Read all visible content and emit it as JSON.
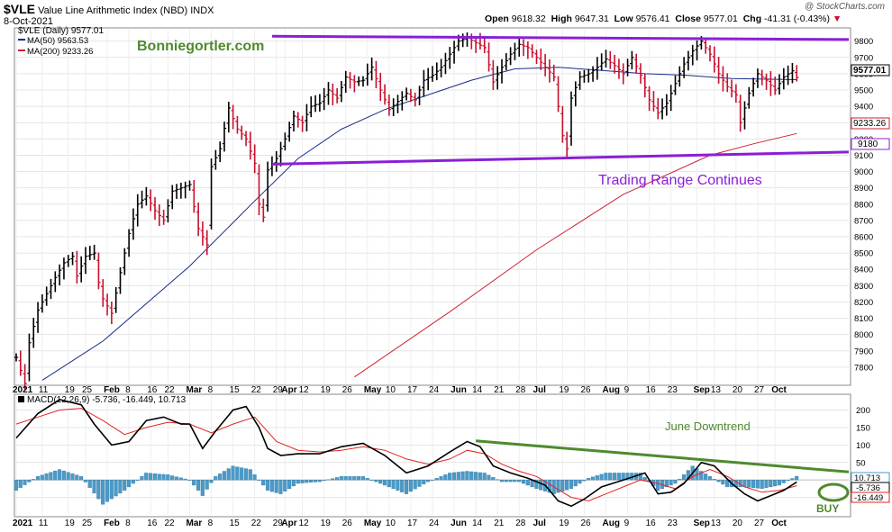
{
  "header": {
    "symbol": "$VLE",
    "name": "Value Line Arithmetic Index (NBD)",
    "exchange": "INDX",
    "date": "8-Oct-2021",
    "credit": "@ StockCharts.com"
  },
  "ohlc": {
    "open_label": "Open",
    "open": "9618.32",
    "high_label": "High",
    "high": "9647.31",
    "low_label": "Low",
    "low": "9576.41",
    "close_label": "Close",
    "close": "9577.01",
    "chg_label": "Chg",
    "chg": "-41.31 (-0.43%)"
  },
  "legend": {
    "price": "$VLE (Daily) 9577.01",
    "ma50": "MA(50) 9563.53",
    "ma200": "MA(200) 9233.26",
    "macd": "MACD(12,26,9) -5.736, -16.449, 10.713"
  },
  "annotations": {
    "watermark": "Bonniegortler.com",
    "range": "Trading Range Continues",
    "downtrend": "June Downtrend",
    "buy": "BUY"
  },
  "price_labels": {
    "last": "9577.01",
    "ma200": "9233.26",
    "support": "9180"
  },
  "macd_labels": {
    "hist": "10.713",
    "macd": "-5.736",
    "signal": "-16.449"
  },
  "colors": {
    "up": "#000000",
    "down": "#c8102e",
    "ma50": "#1a2d8c",
    "ma200": "#cc2233",
    "trend": "#8a1fd6",
    "macd": "#000000",
    "signal": "#e32424",
    "hist": "#4a9ac9",
    "green": "#4e8a2e"
  },
  "x_axis_labels": [
    {
      "d": 0,
      "t": "2021"
    },
    {
      "d": 6,
      "t": "11"
    },
    {
      "d": 12,
      "t": "19"
    },
    {
      "d": 16,
      "t": "25"
    },
    {
      "d": 21,
      "t": "Feb"
    },
    {
      "d": 26,
      "t": "8"
    },
    {
      "d": 31,
      "t": "16"
    },
    {
      "d": 35,
      "t": "22"
    },
    {
      "d": 40,
      "t": "Mar"
    },
    {
      "d": 45,
      "t": "8"
    },
    {
      "d": 50,
      "t": "15"
    },
    {
      "d": 55,
      "t": "22"
    },
    {
      "d": 60,
      "t": "29"
    },
    {
      "d": 62,
      "t": "Apr"
    },
    {
      "d": 66,
      "t": "12"
    },
    {
      "d": 71,
      "t": "19"
    },
    {
      "d": 76,
      "t": "26"
    },
    {
      "d": 81,
      "t": "May"
    },
    {
      "d": 86,
      "t": "10"
    },
    {
      "d": 91,
      "t": "17"
    },
    {
      "d": 96,
      "t": "24"
    },
    {
      "d": 101,
      "t": "Jun"
    },
    {
      "d": 106,
      "t": "14"
    },
    {
      "d": 111,
      "t": "21"
    },
    {
      "d": 116,
      "t": "28"
    },
    {
      "d": 120,
      "t": "Jul"
    },
    {
      "d": 126,
      "t": "19"
    },
    {
      "d": 131,
      "t": "26"
    },
    {
      "d": 136,
      "t": "Aug"
    },
    {
      "d": 141,
      "t": "9"
    },
    {
      "d": 146,
      "t": "16"
    },
    {
      "d": 151,
      "t": "23"
    },
    {
      "d": 157,
      "t": "Sep"
    },
    {
      "d": 161,
      "t": "13"
    },
    {
      "d": 166,
      "t": "20"
    },
    {
      "d": 171,
      "t": "27"
    },
    {
      "d": 175,
      "t": "Oct"
    }
  ],
  "chart_data": [
    {
      "type": "line",
      "title": "$VLE Value Line Arithmetic Index (NBD) INDX — Daily",
      "x_range_days": [
        0,
        192
      ],
      "ylim": [
        7700,
        9870
      ],
      "yticks": [
        7800,
        7900,
        8000,
        8100,
        8200,
        8300,
        8400,
        8500,
        8600,
        8700,
        8800,
        8900,
        9000,
        9100,
        9200,
        9300,
        9400,
        9500,
        9600,
        9700,
        9800
      ],
      "price_path": [
        [
          0,
          7860
        ],
        [
          2,
          7700
        ],
        [
          3,
          7950
        ],
        [
          5,
          8150
        ],
        [
          7,
          8250
        ],
        [
          9,
          8350
        ],
        [
          11,
          8440
        ],
        [
          13,
          8480
        ],
        [
          14,
          8360
        ],
        [
          16,
          8480
        ],
        [
          18,
          8500
        ],
        [
          19,
          8320
        ],
        [
          20,
          8220
        ],
        [
          22,
          8130
        ],
        [
          24,
          8380
        ],
        [
          26,
          8620
        ],
        [
          28,
          8800
        ],
        [
          30,
          8850
        ],
        [
          32,
          8760
        ],
        [
          34,
          8700
        ],
        [
          36,
          8880
        ],
        [
          38,
          8900
        ],
        [
          40,
          8920
        ],
        [
          42,
          8650
        ],
        [
          44,
          8550
        ],
        [
          45,
          9030
        ],
        [
          47,
          9140
        ],
        [
          49,
          9390
        ],
        [
          51,
          9260
        ],
        [
          53,
          9200
        ],
        [
          55,
          9050
        ],
        [
          56,
          8800
        ],
        [
          57,
          8720
        ],
        [
          58,
          9010
        ],
        [
          60,
          9080
        ],
        [
          62,
          9200
        ],
        [
          64,
          9340
        ],
        [
          66,
          9300
        ],
        [
          68,
          9400
        ],
        [
          70,
          9420
        ],
        [
          72,
          9500
        ],
        [
          74,
          9450
        ],
        [
          76,
          9580
        ],
        [
          78,
          9550
        ],
        [
          80,
          9560
        ],
        [
          82,
          9640
        ],
        [
          84,
          9500
        ],
        [
          86,
          9380
        ],
        [
          88,
          9430
        ],
        [
          90,
          9480
        ],
        [
          92,
          9440
        ],
        [
          94,
          9560
        ],
        [
          96,
          9590
        ],
        [
          98,
          9640
        ],
        [
          100,
          9720
        ],
        [
          102,
          9800
        ],
        [
          104,
          9820
        ],
        [
          106,
          9790
        ],
        [
          108,
          9760
        ],
        [
          110,
          9550
        ],
        [
          112,
          9640
        ],
        [
          114,
          9720
        ],
        [
          116,
          9780
        ],
        [
          118,
          9760
        ],
        [
          120,
          9700
        ],
        [
          122,
          9640
        ],
        [
          124,
          9580
        ],
        [
          126,
          9220
        ],
        [
          127,
          9140
        ],
        [
          128,
          9450
        ],
        [
          130,
          9580
        ],
        [
          132,
          9600
        ],
        [
          134,
          9640
        ],
        [
          136,
          9690
        ],
        [
          138,
          9650
        ],
        [
          140,
          9600
        ],
        [
          142,
          9700
        ],
        [
          144,
          9590
        ],
        [
          146,
          9440
        ],
        [
          148,
          9360
        ],
        [
          150,
          9420
        ],
        [
          152,
          9540
        ],
        [
          154,
          9660
        ],
        [
          156,
          9740
        ],
        [
          158,
          9800
        ],
        [
          160,
          9720
        ],
        [
          162,
          9600
        ],
        [
          164,
          9520
        ],
        [
          166,
          9470
        ],
        [
          167,
          9300
        ],
        [
          169,
          9480
        ],
        [
          171,
          9600
        ],
        [
          173,
          9560
        ],
        [
          175,
          9500
        ],
        [
          177,
          9580
        ],
        [
          179,
          9618
        ],
        [
          180,
          9577
        ]
      ],
      "series": [
        {
          "name": "MA(50) 9563.53",
          "values": [
            [
              6,
              7720
            ],
            [
              20,
              7960
            ],
            [
              40,
              8420
            ],
            [
              55,
              8820
            ],
            [
              65,
              9080
            ],
            [
              75,
              9260
            ],
            [
              85,
              9380
            ],
            [
              95,
              9470
            ],
            [
              105,
              9560
            ],
            [
              115,
              9630
            ],
            [
              125,
              9640
            ],
            [
              135,
              9620
            ],
            [
              145,
              9600
            ],
            [
              155,
              9590
            ],
            [
              165,
              9570
            ],
            [
              180,
              9563.53
            ]
          ]
        },
        {
          "name": "MA(200) 9233.26",
          "values": [
            [
              78,
              7740
            ],
            [
              100,
              8140
            ],
            [
              120,
              8520
            ],
            [
              140,
              8860
            ],
            [
              160,
              9100
            ],
            [
              170,
              9170
            ],
            [
              180,
              9233.26
            ]
          ]
        }
      ],
      "trendlines": [
        {
          "name": "resistance",
          "points": [
            [
              59,
              9830
            ],
            [
              192,
              9810
            ]
          ]
        },
        {
          "name": "support",
          "points": [
            [
              59,
              9045
            ],
            [
              192,
              9120
            ]
          ]
        }
      ]
    },
    {
      "type": "line",
      "title": "MACD(12,26,9) -5.736, -16.449, 10.713",
      "ylim": [
        -100,
        240
      ],
      "yticks": [
        -50,
        0,
        50,
        100,
        150,
        200
      ],
      "series": [
        {
          "name": "MACD",
          "values": [
            [
              0,
              120
            ],
            [
              5,
              190
            ],
            [
              10,
              230
            ],
            [
              15,
              215
            ],
            [
              18,
              160
            ],
            [
              22,
              100
            ],
            [
              26,
              110
            ],
            [
              30,
              170
            ],
            [
              34,
              180
            ],
            [
              38,
              160
            ],
            [
              40,
              160
            ],
            [
              43,
              90
            ],
            [
              46,
              140
            ],
            [
              50,
              200
            ],
            [
              53,
              210
            ],
            [
              56,
              150
            ],
            [
              58,
              90
            ],
            [
              61,
              70
            ],
            [
              65,
              75
            ],
            [
              70,
              75
            ],
            [
              75,
              95
            ],
            [
              80,
              105
            ],
            [
              85,
              70
            ],
            [
              90,
              20
            ],
            [
              95,
              40
            ],
            [
              100,
              80
            ],
            [
              104,
              110
            ],
            [
              107,
              95
            ],
            [
              110,
              40
            ],
            [
              114,
              20
            ],
            [
              118,
              5
            ],
            [
              122,
              -15
            ],
            [
              125,
              -60
            ],
            [
              128,
              -75
            ],
            [
              131,
              -55
            ],
            [
              135,
              -20
            ],
            [
              140,
              0
            ],
            [
              145,
              20
            ],
            [
              148,
              -40
            ],
            [
              151,
              -35
            ],
            [
              154,
              -10
            ],
            [
              158,
              50
            ],
            [
              161,
              40
            ],
            [
              165,
              -10
            ],
            [
              168,
              -40
            ],
            [
              171,
              -60
            ],
            [
              174,
              -45
            ],
            [
              177,
              -30
            ],
            [
              180,
              -5.736
            ]
          ]
        },
        {
          "name": "Signal",
          "values": [
            [
              0,
              160
            ],
            [
              5,
              180
            ],
            [
              10,
              200
            ],
            [
              15,
              205
            ],
            [
              20,
              170
            ],
            [
              25,
              130
            ],
            [
              30,
              150
            ],
            [
              35,
              165
            ],
            [
              40,
              160
            ],
            [
              45,
              135
            ],
            [
              50,
              160
            ],
            [
              55,
              180
            ],
            [
              60,
              110
            ],
            [
              65,
              85
            ],
            [
              70,
              80
            ],
            [
              75,
              85
            ],
            [
              80,
              95
            ],
            [
              85,
              85
            ],
            [
              90,
              60
            ],
            [
              95,
              45
            ],
            [
              100,
              60
            ],
            [
              104,
              85
            ],
            [
              108,
              75
            ],
            [
              112,
              45
            ],
            [
              116,
              25
            ],
            [
              120,
              10
            ],
            [
              124,
              -20
            ],
            [
              128,
              -50
            ],
            [
              132,
              -60
            ],
            [
              136,
              -40
            ],
            [
              140,
              -20
            ],
            [
              144,
              0
            ],
            [
              148,
              -10
            ],
            [
              152,
              -25
            ],
            [
              156,
              10
            ],
            [
              160,
              30
            ],
            [
              164,
              10
            ],
            [
              168,
              -20
            ],
            [
              172,
              -35
            ],
            [
              176,
              -30
            ],
            [
              180,
              -16.449
            ]
          ]
        },
        {
          "name": "Histogram",
          "values": [
            [
              0,
              -30
            ],
            [
              5,
              10
            ],
            [
              10,
              30
            ],
            [
              15,
              10
            ],
            [
              20,
              -70
            ],
            [
              25,
              -30
            ],
            [
              30,
              20
            ],
            [
              35,
              15
            ],
            [
              40,
              0
            ],
            [
              43,
              -45
            ],
            [
              46,
              10
            ],
            [
              50,
              40
            ],
            [
              54,
              30
            ],
            [
              58,
              -30
            ],
            [
              61,
              -40
            ],
            [
              65,
              -10
            ],
            [
              70,
              -5
            ],
            [
              75,
              10
            ],
            [
              80,
              10
            ],
            [
              85,
              -15
            ],
            [
              90,
              -40
            ],
            [
              95,
              -5
            ],
            [
              100,
              20
            ],
            [
              104,
              25
            ],
            [
              108,
              20
            ],
            [
              112,
              -5
            ],
            [
              116,
              -5
            ],
            [
              120,
              -25
            ],
            [
              124,
              -40
            ],
            [
              128,
              -25
            ],
            [
              132,
              5
            ],
            [
              136,
              20
            ],
            [
              140,
              20
            ],
            [
              144,
              20
            ],
            [
              148,
              -30
            ],
            [
              152,
              -10
            ],
            [
              156,
              40
            ],
            [
              160,
              10
            ],
            [
              164,
              -20
            ],
            [
              168,
              -20
            ],
            [
              172,
              -25
            ],
            [
              176,
              -15
            ],
            [
              180,
              10.713
            ]
          ]
        }
      ],
      "trendlines": [
        {
          "name": "June Downtrend",
          "points": [
            [
              106,
              112
            ],
            [
              192,
              23
            ]
          ]
        }
      ]
    }
  ]
}
